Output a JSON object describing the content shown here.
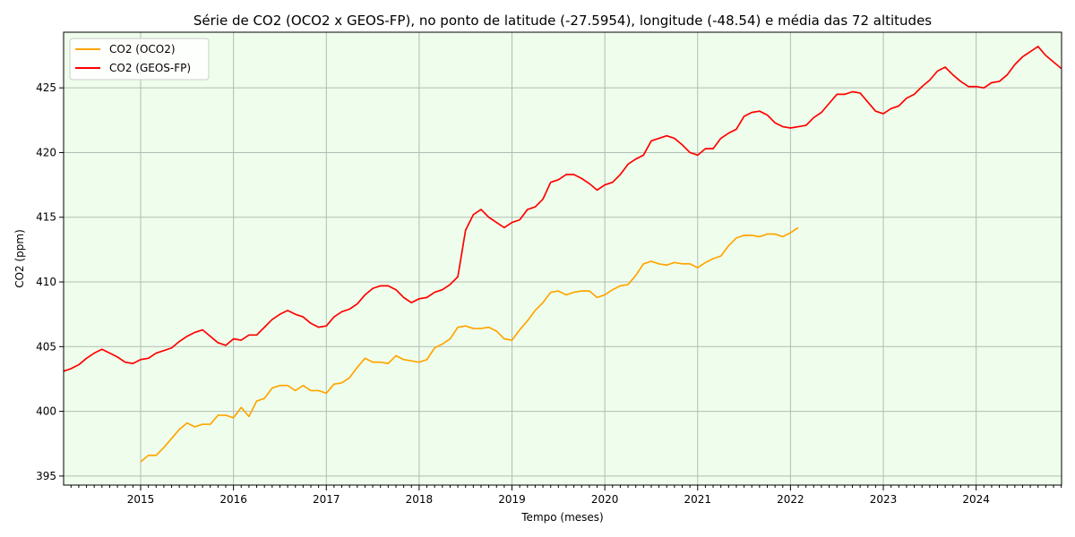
{
  "chart_data": {
    "type": "line",
    "title": "Série de CO2 (OCO2 x GEOS-FP), no ponto de  latitude (-27.5954), longitude (-48.54) e média das 72 altitudes",
    "xlabel": "Tempo (meses)",
    "ylabel": "CO2 (ppm)",
    "xlim": [
      2014.17,
      2024.92
    ],
    "ylim": [
      394.3,
      429.3
    ],
    "x_ticks": [
      2015,
      2016,
      2017,
      2018,
      2019,
      2020,
      2021,
      2022,
      2023,
      2024
    ],
    "x_tick_labels": [
      "2015",
      "2016",
      "2017",
      "2018",
      "2019",
      "2020",
      "2021",
      "2022",
      "2023",
      "2024"
    ],
    "y_ticks": [
      395,
      400,
      405,
      410,
      415,
      420,
      425
    ],
    "y_tick_labels": [
      "395",
      "400",
      "405",
      "410",
      "415",
      "420",
      "425"
    ],
    "grid": true,
    "background_color": "#effeec",
    "grid_color": "#b0bcb4",
    "legend_position": "top-left",
    "series": [
      {
        "name": "CO2 (OCO2)",
        "color": "#ffa500",
        "start": 2015.0,
        "step": 0.0833333,
        "values": [
          396.1,
          396.6,
          396.6,
          397.2,
          397.9,
          398.6,
          399.1,
          398.8,
          399.0,
          399.0,
          399.7,
          399.7,
          399.5,
          400.3,
          399.6,
          400.8,
          401.0,
          401.8,
          402.0,
          402.0,
          401.6,
          402.0,
          401.6,
          401.6,
          401.4,
          402.1,
          402.2,
          402.6,
          403.4,
          404.1,
          403.8,
          403.8,
          403.7,
          404.3,
          404.0,
          403.9,
          403.8,
          404.0,
          404.9,
          405.2,
          405.6,
          406.5,
          406.6,
          406.4,
          406.4,
          406.5,
          406.2,
          405.6,
          405.5,
          406.3,
          407.0,
          407.8,
          408.4,
          409.2,
          409.3,
          409.0,
          409.2,
          409.3,
          409.3,
          408.8,
          409.0,
          409.4,
          409.7,
          409.8,
          410.5,
          411.4,
          411.6,
          411.4,
          411.3,
          411.5,
          411.4,
          411.4,
          411.1,
          411.5,
          411.8,
          412.0,
          412.8,
          413.4,
          413.6,
          413.6,
          413.5,
          413.7,
          413.7,
          413.5,
          413.8,
          414.2
        ]
      },
      {
        "name": "CO2 (GEOS-FP)",
        "color": "#ff0000",
        "start": 2014.1667,
        "step": 0.0833333,
        "values": [
          403.1,
          403.3,
          403.6,
          404.1,
          404.5,
          404.8,
          404.5,
          404.2,
          403.8,
          403.7,
          404.0,
          404.1,
          404.5,
          404.7,
          404.9,
          405.4,
          405.8,
          406.1,
          406.3,
          405.8,
          405.3,
          405.1,
          405.6,
          405.5,
          405.9,
          405.9,
          406.5,
          407.1,
          407.5,
          407.8,
          407.5,
          407.3,
          406.8,
          406.5,
          406.6,
          407.3,
          407.7,
          407.9,
          408.3,
          409.0,
          409.5,
          409.7,
          409.7,
          409.4,
          408.8,
          408.4,
          408.7,
          408.8,
          409.2,
          409.4,
          409.8,
          410.4,
          414.0,
          415.2,
          415.6,
          415.0,
          414.6,
          414.2,
          414.6,
          414.8,
          415.6,
          415.8,
          416.4,
          417.7,
          417.9,
          418.3,
          418.3,
          418.0,
          417.6,
          417.1,
          417.5,
          417.7,
          418.3,
          419.1,
          419.5,
          419.8,
          420.9,
          421.1,
          421.3,
          421.1,
          420.6,
          420.0,
          419.8,
          420.3,
          420.3,
          421.1,
          421.5,
          421.8,
          422.8,
          423.1,
          423.2,
          422.9,
          422.3,
          422.0,
          421.9,
          422.0,
          422.1,
          422.7,
          423.1,
          423.8,
          424.5,
          424.5,
          424.7,
          424.6,
          423.9,
          423.2,
          423.0,
          423.4,
          423.6,
          424.2,
          424.5,
          425.1,
          425.6,
          426.3,
          426.6,
          426.0,
          425.5,
          425.1,
          425.1,
          425.0,
          425.4,
          425.5,
          426.0,
          426.8,
          427.4,
          427.8,
          428.2,
          427.5,
          427.0,
          426.5
        ]
      }
    ]
  }
}
